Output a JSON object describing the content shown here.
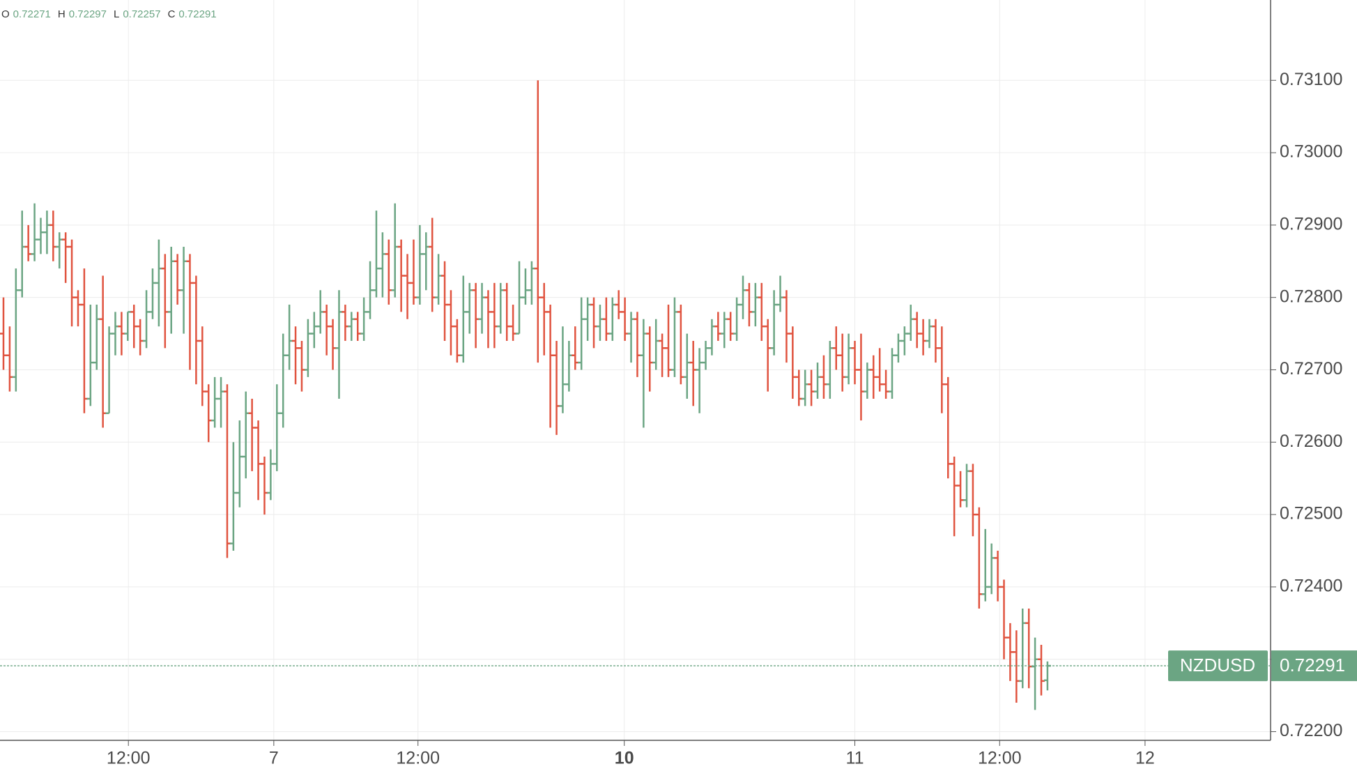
{
  "chart_data": {
    "type": "ohlc",
    "symbol": "NZDUSD",
    "header": [
      {
        "label": "O",
        "value": 0.72271
      },
      {
        "label": "H",
        "value": 0.72297
      },
      {
        "label": "L",
        "value": 0.72257
      },
      {
        "label": "C",
        "value": 0.72291
      }
    ],
    "last_price": 0.72291,
    "up_color": "#6ba583",
    "down_color": "#e0533f",
    "grid": true,
    "xlim": [
      -0.56,
      203.9
    ],
    "xticks": [
      {
        "value": 20.1,
        "label": "12:00"
      },
      {
        "value": 43.5,
        "label": "7"
      },
      {
        "value": 66.7,
        "label": "12:00"
      },
      {
        "value": 99.9,
        "label": "10",
        "bold": true
      },
      {
        "value": 137.0,
        "label": "11"
      },
      {
        "value": 160.3,
        "label": "12:00"
      },
      {
        "value": 183.7,
        "label": "12"
      }
    ],
    "ylim": [
      0.72188,
      0.73211
    ],
    "yticks": [
      {
        "value": 0.722,
        "label": "0.72200"
      },
      {
        "value": 0.723,
        "label": "0.72300"
      },
      {
        "value": 0.724,
        "label": "0.72400"
      },
      {
        "value": 0.725,
        "label": "0.72500"
      },
      {
        "value": 0.726,
        "label": "0.72600"
      },
      {
        "value": 0.727,
        "label": "0.72700"
      },
      {
        "value": 0.728,
        "label": "0.72800"
      },
      {
        "value": 0.729,
        "label": "0.72900"
      },
      {
        "value": 0.73,
        "label": "0.73000"
      },
      {
        "value": 0.731,
        "label": "0.73100"
      }
    ],
    "bars": [
      [
        0.7275,
        0.728,
        0.727,
        0.7272
      ],
      [
        0.7272,
        0.7276,
        0.7267,
        0.7269
      ],
      [
        0.7269,
        0.7284,
        0.7267,
        0.7281
      ],
      [
        0.7281,
        0.7292,
        0.728,
        0.7287
      ],
      [
        0.7287,
        0.729,
        0.7285,
        0.7286
      ],
      [
        0.7286,
        0.7293,
        0.7285,
        0.7288
      ],
      [
        0.7288,
        0.7291,
        0.7286,
        0.7289
      ],
      [
        0.7289,
        0.7292,
        0.7286,
        0.729
      ],
      [
        0.729,
        0.7292,
        0.7285,
        0.7287
      ],
      [
        0.7287,
        0.7289,
        0.7284,
        0.7288
      ],
      [
        0.7288,
        0.7289,
        0.7282,
        0.7287
      ],
      [
        0.7287,
        0.7288,
        0.7276,
        0.728
      ],
      [
        0.728,
        0.7281,
        0.7276,
        0.7279
      ],
      [
        0.7279,
        0.7284,
        0.7264,
        0.7266
      ],
      [
        0.7266,
        0.7279,
        0.7265,
        0.7271
      ],
      [
        0.7271,
        0.7279,
        0.727,
        0.7277
      ],
      [
        0.7277,
        0.7283,
        0.7262,
        0.7264
      ],
      [
        0.7264,
        0.7276,
        0.7264,
        0.7275
      ],
      [
        0.7275,
        0.7278,
        0.7272,
        0.7276
      ],
      [
        0.7276,
        0.7278,
        0.7272,
        0.7275
      ],
      [
        0.7275,
        0.7278,
        0.7274,
        0.7278
      ],
      [
        0.7278,
        0.7279,
        0.7273,
        0.7276
      ],
      [
        0.7276,
        0.7277,
        0.7272,
        0.7274
      ],
      [
        0.7274,
        0.7281,
        0.7273,
        0.7278
      ],
      [
        0.7278,
        0.7284,
        0.7277,
        0.7282
      ],
      [
        0.7282,
        0.7288,
        0.7276,
        0.7284
      ],
      [
        0.7284,
        0.7286,
        0.7273,
        0.7278
      ],
      [
        0.7278,
        0.7287,
        0.7275,
        0.7285
      ],
      [
        0.7285,
        0.7286,
        0.7279,
        0.7281
      ],
      [
        0.7281,
        0.7287,
        0.7275,
        0.7285
      ],
      [
        0.7285,
        0.7286,
        0.727,
        0.7282
      ],
      [
        0.7282,
        0.7283,
        0.7268,
        0.7274
      ],
      [
        0.7274,
        0.7276,
        0.7265,
        0.7267
      ],
      [
        0.7267,
        0.7268,
        0.726,
        0.7263
      ],
      [
        0.7263,
        0.7269,
        0.7262,
        0.7266
      ],
      [
        0.7266,
        0.7269,
        0.7262,
        0.7267
      ],
      [
        0.7267,
        0.7268,
        0.7244,
        0.7246
      ],
      [
        0.7246,
        0.726,
        0.7245,
        0.7253
      ],
      [
        0.7253,
        0.7263,
        0.7251,
        0.7258
      ],
      [
        0.7258,
        0.7267,
        0.7255,
        0.7264
      ],
      [
        0.7264,
        0.7266,
        0.7256,
        0.7262
      ],
      [
        0.7262,
        0.7263,
        0.7252,
        0.7257
      ],
      [
        0.7257,
        0.7258,
        0.725,
        0.7253
      ],
      [
        0.7253,
        0.7259,
        0.7252,
        0.7257
      ],
      [
        0.7257,
        0.7268,
        0.7256,
        0.7264
      ],
      [
        0.7264,
        0.7275,
        0.7262,
        0.7272
      ],
      [
        0.7272,
        0.7279,
        0.727,
        0.7274
      ],
      [
        0.7274,
        0.7276,
        0.7268,
        0.7273
      ],
      [
        0.7273,
        0.7274,
        0.7267,
        0.727
      ],
      [
        0.727,
        0.7277,
        0.7269,
        0.7275
      ],
      [
        0.7275,
        0.7278,
        0.7273,
        0.7276
      ],
      [
        0.7276,
        0.7281,
        0.7275,
        0.7278
      ],
      [
        0.7278,
        0.7279,
        0.7272,
        0.7276
      ],
      [
        0.7276,
        0.7277,
        0.727,
        0.7273
      ],
      [
        0.7273,
        0.7281,
        0.7266,
        0.7278
      ],
      [
        0.7278,
        0.7279,
        0.7274,
        0.7276
      ],
      [
        0.7276,
        0.7278,
        0.7274,
        0.7277
      ],
      [
        0.7277,
        0.7278,
        0.7274,
        0.7275
      ],
      [
        0.7275,
        0.728,
        0.7274,
        0.7278
      ],
      [
        0.7278,
        0.7285,
        0.7277,
        0.7281
      ],
      [
        0.7281,
        0.7292,
        0.728,
        0.7284
      ],
      [
        0.7284,
        0.7289,
        0.728,
        0.7286
      ],
      [
        0.7286,
        0.7288,
        0.7279,
        0.7281
      ],
      [
        0.7281,
        0.7293,
        0.728,
        0.7287
      ],
      [
        0.7287,
        0.7288,
        0.7278,
        0.7283
      ],
      [
        0.7283,
        0.7286,
        0.7277,
        0.7282
      ],
      [
        0.7282,
        0.7288,
        0.7279,
        0.728
      ],
      [
        0.728,
        0.729,
        0.7279,
        0.7286
      ],
      [
        0.7286,
        0.7289,
        0.7281,
        0.7287
      ],
      [
        0.7287,
        0.7291,
        0.7278,
        0.728
      ],
      [
        0.728,
        0.7286,
        0.7279,
        0.7283
      ],
      [
        0.7283,
        0.7285,
        0.7274,
        0.7279
      ],
      [
        0.7279,
        0.7281,
        0.7272,
        0.7276
      ],
      [
        0.7276,
        0.7277,
        0.7271,
        0.7272
      ],
      [
        0.7272,
        0.7283,
        0.7271,
        0.7278
      ],
      [
        0.7278,
        0.7282,
        0.7275,
        0.7281
      ],
      [
        0.7281,
        0.7282,
        0.7273,
        0.7277
      ],
      [
        0.7277,
        0.7282,
        0.7275,
        0.728
      ],
      [
        0.728,
        0.7281,
        0.7273,
        0.7278
      ],
      [
        0.7278,
        0.7282,
        0.7273,
        0.7276
      ],
      [
        0.7276,
        0.7282,
        0.7275,
        0.7281
      ],
      [
        0.7281,
        0.7282,
        0.7274,
        0.7276
      ],
      [
        0.7276,
        0.7279,
        0.7274,
        0.7275
      ],
      [
        0.7275,
        0.7285,
        0.7275,
        0.728
      ],
      [
        0.728,
        0.7284,
        0.7279,
        0.7281
      ],
      [
        0.7281,
        0.7285,
        0.7279,
        0.7284
      ],
      [
        0.7284,
        0.731,
        0.7271,
        0.728
      ],
      [
        0.728,
        0.7282,
        0.7272,
        0.7278
      ],
      [
        0.7278,
        0.7279,
        0.7262,
        0.7272
      ],
      [
        0.7272,
        0.7274,
        0.7261,
        0.7265
      ],
      [
        0.7265,
        0.7276,
        0.7264,
        0.7268
      ],
      [
        0.7268,
        0.7274,
        0.7267,
        0.7272
      ],
      [
        0.7272,
        0.7276,
        0.727,
        0.7271
      ],
      [
        0.7271,
        0.728,
        0.727,
        0.7277
      ],
      [
        0.7277,
        0.728,
        0.7274,
        0.7279
      ],
      [
        0.7279,
        0.728,
        0.7273,
        0.7276
      ],
      [
        0.7276,
        0.7279,
        0.7274,
        0.7277
      ],
      [
        0.7277,
        0.728,
        0.7274,
        0.7275
      ],
      [
        0.7275,
        0.728,
        0.7274,
        0.7279
      ],
      [
        0.7279,
        0.7281,
        0.7277,
        0.7278
      ],
      [
        0.7278,
        0.728,
        0.7274,
        0.7275
      ],
      [
        0.7275,
        0.7278,
        0.7271,
        0.7277
      ],
      [
        0.7277,
        0.7278,
        0.7269,
        0.7272
      ],
      [
        0.7272,
        0.7277,
        0.7262,
        0.7275
      ],
      [
        0.7275,
        0.7276,
        0.7267,
        0.7271
      ],
      [
        0.7271,
        0.7277,
        0.727,
        0.7274
      ],
      [
        0.7274,
        0.7275,
        0.7269,
        0.7273
      ],
      [
        0.7273,
        0.7279,
        0.7269,
        0.727
      ],
      [
        0.727,
        0.728,
        0.7269,
        0.7278
      ],
      [
        0.7278,
        0.7279,
        0.7268,
        0.7269
      ],
      [
        0.7269,
        0.7275,
        0.7266,
        0.7271
      ],
      [
        0.7271,
        0.7274,
        0.7265,
        0.727
      ],
      [
        0.727,
        0.7273,
        0.7264,
        0.7271
      ],
      [
        0.7271,
        0.7274,
        0.727,
        0.7273
      ],
      [
        0.7273,
        0.7277,
        0.7272,
        0.7276
      ],
      [
        0.7276,
        0.7278,
        0.7274,
        0.7275
      ],
      [
        0.7275,
        0.7278,
        0.7273,
        0.7277
      ],
      [
        0.7277,
        0.7278,
        0.7274,
        0.7275
      ],
      [
        0.7275,
        0.728,
        0.7274,
        0.7279
      ],
      [
        0.7279,
        0.7283,
        0.7277,
        0.7281
      ],
      [
        0.7281,
        0.7282,
        0.7276,
        0.7278
      ],
      [
        0.7278,
        0.7282,
        0.7276,
        0.728
      ],
      [
        0.728,
        0.7282,
        0.7274,
        0.7276
      ],
      [
        0.7276,
        0.7277,
        0.7267,
        0.7273
      ],
      [
        0.7273,
        0.7281,
        0.7272,
        0.7279
      ],
      [
        0.7279,
        0.7283,
        0.7278,
        0.728
      ],
      [
        0.728,
        0.7281,
        0.7271,
        0.7275
      ],
      [
        0.7275,
        0.7276,
        0.7266,
        0.7269
      ],
      [
        0.7269,
        0.727,
        0.7265,
        0.7266
      ],
      [
        0.7266,
        0.727,
        0.7265,
        0.7268
      ],
      [
        0.7268,
        0.727,
        0.7265,
        0.7267
      ],
      [
        0.7267,
        0.7271,
        0.7266,
        0.7269
      ],
      [
        0.7269,
        0.7272,
        0.7266,
        0.7268
      ],
      [
        0.7268,
        0.7274,
        0.7266,
        0.7273
      ],
      [
        0.7273,
        0.7276,
        0.727,
        0.7272
      ],
      [
        0.7272,
        0.7275,
        0.7267,
        0.7269
      ],
      [
        0.7269,
        0.7275,
        0.7268,
        0.7273
      ],
      [
        0.7273,
        0.7274,
        0.7268,
        0.727
      ],
      [
        0.727,
        0.7275,
        0.7263,
        0.7267
      ],
      [
        0.7267,
        0.7271,
        0.7266,
        0.727
      ],
      [
        0.727,
        0.7272,
        0.7266,
        0.7269
      ],
      [
        0.7269,
        0.7273,
        0.7267,
        0.7268
      ],
      [
        0.7268,
        0.727,
        0.7266,
        0.7267
      ],
      [
        0.7267,
        0.7273,
        0.7266,
        0.7272
      ],
      [
        0.7272,
        0.7275,
        0.7271,
        0.7274
      ],
      [
        0.7274,
        0.7276,
        0.7272,
        0.7275
      ],
      [
        0.7275,
        0.7279,
        0.7274,
        0.7277
      ],
      [
        0.7277,
        0.7278,
        0.7273,
        0.7275
      ],
      [
        0.7275,
        0.7277,
        0.7272,
        0.7274
      ],
      [
        0.7274,
        0.7277,
        0.7273,
        0.7276
      ],
      [
        0.7276,
        0.7277,
        0.7271,
        0.7273
      ],
      [
        0.7273,
        0.7276,
        0.7264,
        0.7268
      ],
      [
        0.7268,
        0.7269,
        0.7255,
        0.7257
      ],
      [
        0.7257,
        0.7258,
        0.7247,
        0.7254
      ],
      [
        0.7254,
        0.7256,
        0.7251,
        0.7252
      ],
      [
        0.7252,
        0.7257,
        0.7251,
        0.7256
      ],
      [
        0.7256,
        0.7257,
        0.7247,
        0.725
      ],
      [
        0.725,
        0.7251,
        0.7237,
        0.7239
      ],
      [
        0.7239,
        0.7248,
        0.7238,
        0.724
      ],
      [
        0.724,
        0.7246,
        0.7239,
        0.7244
      ],
      [
        0.7244,
        0.7245,
        0.7238,
        0.724
      ],
      [
        0.724,
        0.7241,
        0.723,
        0.7233
      ],
      [
        0.7233,
        0.7235,
        0.7227,
        0.7231
      ],
      [
        0.7231,
        0.7234,
        0.7224,
        0.7227
      ],
      [
        0.7227,
        0.7237,
        0.7226,
        0.7235
      ],
      [
        0.7235,
        0.7237,
        0.7226,
        0.7229
      ],
      [
        0.7229,
        0.7233,
        0.7223,
        0.723
      ],
      [
        0.723,
        0.7232,
        0.7225,
        0.7227
      ],
      [
        0.72271,
        0.72297,
        0.72257,
        0.72291
      ]
    ]
  }
}
